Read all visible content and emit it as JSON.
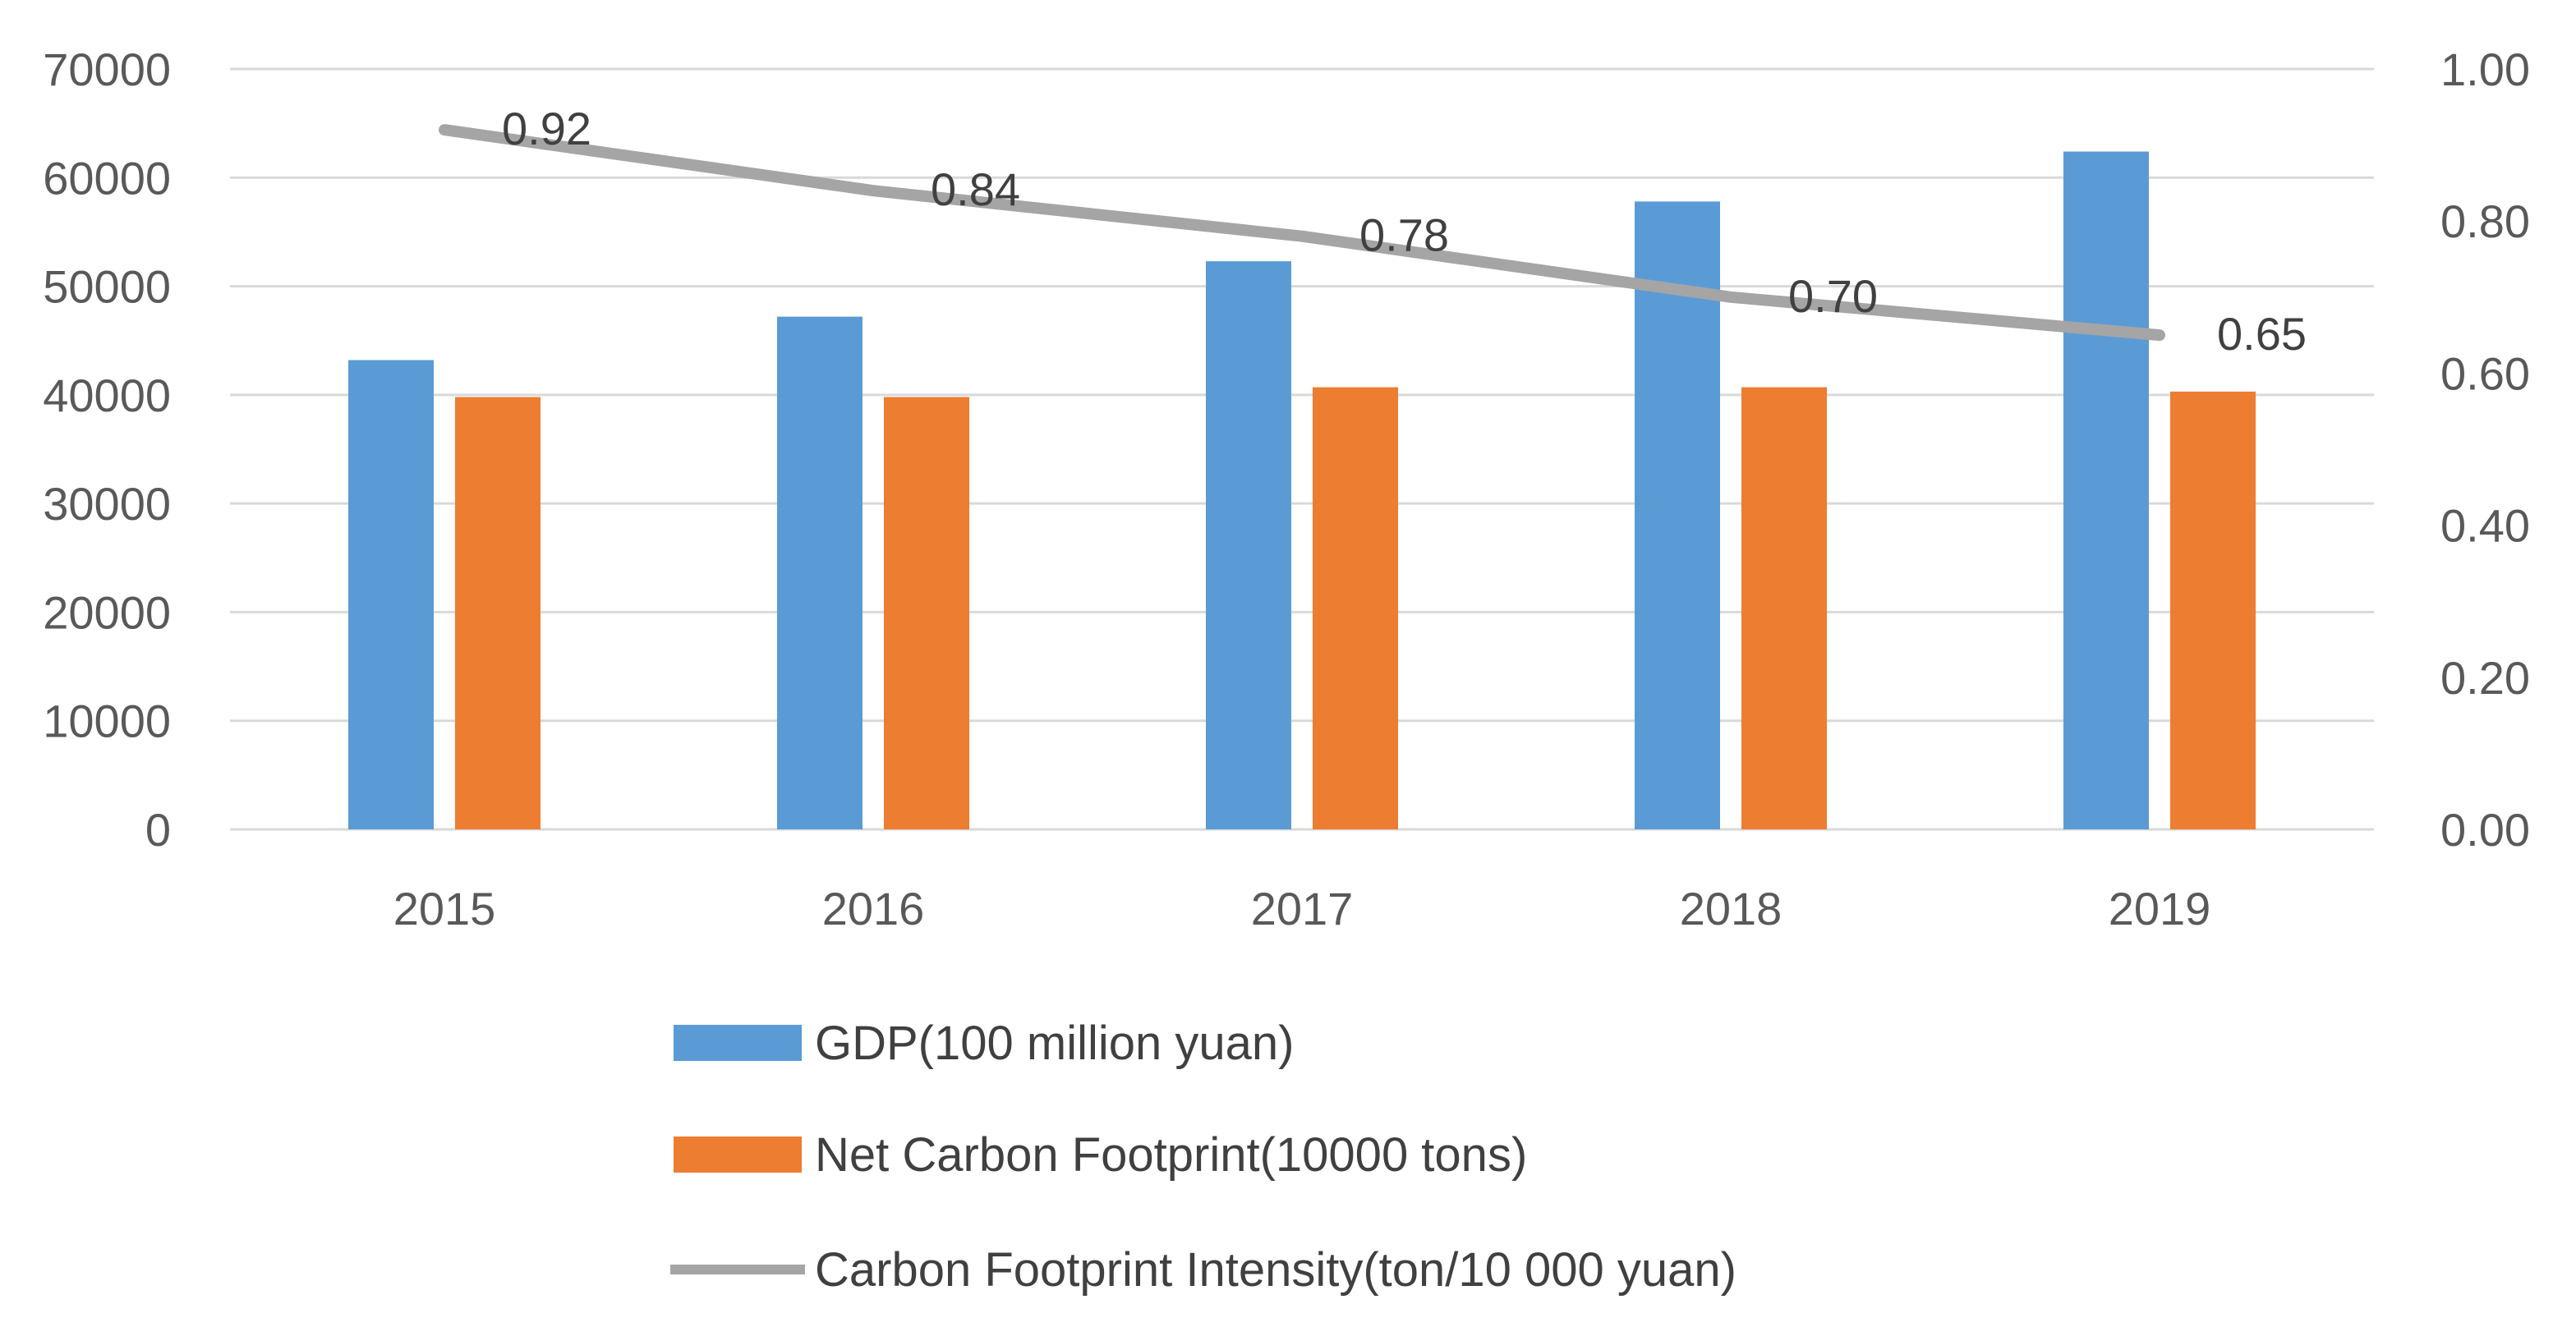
{
  "chart_data": {
    "type": "bar",
    "title": "",
    "xlabel": "",
    "ylabel": "",
    "categories": [
      "2015",
      "2016",
      "2017",
      "2018",
      "2019"
    ],
    "series": [
      {
        "name": "GDP(100 million yuan)",
        "type": "bar",
        "axis": "left",
        "color": "#5b9bd5",
        "values": [
          43200,
          47200,
          52300,
          57800,
          62400
        ]
      },
      {
        "name": "Net Carbon Footprint(10000 tons)",
        "type": "bar",
        "axis": "left",
        "color": "#ed7d31",
        "values": [
          39800,
          39800,
          40700,
          40700,
          40300
        ]
      },
      {
        "name": "Carbon Footprint Intensity(ton/10 000 yuan)",
        "type": "line",
        "axis": "right",
        "color": "#a5a5a5",
        "values": [
          0.92,
          0.84,
          0.78,
          0.7,
          0.65
        ],
        "data_labels": [
          "0.92",
          "0.84",
          "0.78",
          "0.70",
          "0.65"
        ]
      }
    ],
    "y_left": {
      "ylim": [
        0,
        70000
      ],
      "ticks": [
        0,
        10000,
        20000,
        30000,
        40000,
        50000,
        60000,
        70000
      ],
      "tick_labels": [
        "0",
        "10000",
        "20000",
        "30000",
        "40000",
        "50000",
        "60000",
        "70000"
      ]
    },
    "y_right": {
      "ylim": [
        0,
        1.0
      ],
      "ticks": [
        0,
        0.2,
        0.4,
        0.6,
        0.8,
        1.0
      ],
      "tick_labels": [
        "0.00",
        "0.20",
        "0.40",
        "0.60",
        "0.80",
        "1.00"
      ]
    },
    "grid": true,
    "legend_position": "bottom-center"
  }
}
